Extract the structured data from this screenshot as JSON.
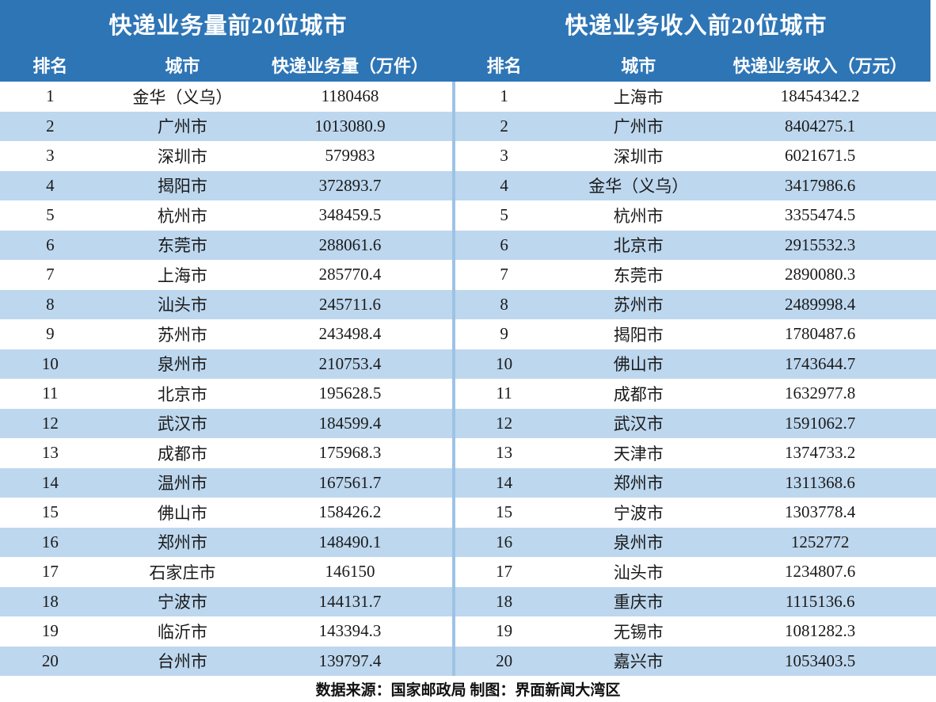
{
  "tables": [
    {
      "id": "volume",
      "title": "快递业务量前20位城市",
      "columns": [
        "排名",
        "城市",
        "快递业务量（万件）"
      ],
      "rows": [
        {
          "rank": "1",
          "city": "金华（义乌）",
          "value": "1180468"
        },
        {
          "rank": "2",
          "city": "广州市",
          "value": "1013080.9"
        },
        {
          "rank": "3",
          "city": "深圳市",
          "value": "579983"
        },
        {
          "rank": "4",
          "city": "揭阳市",
          "value": "372893.7"
        },
        {
          "rank": "5",
          "city": "杭州市",
          "value": "348459.5"
        },
        {
          "rank": "6",
          "city": "东莞市",
          "value": "288061.6"
        },
        {
          "rank": "7",
          "city": "上海市",
          "value": "285770.4"
        },
        {
          "rank": "8",
          "city": "汕头市",
          "value": "245711.6"
        },
        {
          "rank": "9",
          "city": "苏州市",
          "value": "243498.4"
        },
        {
          "rank": "10",
          "city": "泉州市",
          "value": "210753.4"
        },
        {
          "rank": "11",
          "city": "北京市",
          "value": "195628.5"
        },
        {
          "rank": "12",
          "city": "武汉市",
          "value": "184599.4"
        },
        {
          "rank": "13",
          "city": "成都市",
          "value": "175968.3"
        },
        {
          "rank": "14",
          "city": "温州市",
          "value": "167561.7"
        },
        {
          "rank": "15",
          "city": "佛山市",
          "value": "158426.2"
        },
        {
          "rank": "16",
          "city": "郑州市",
          "value": "148490.1"
        },
        {
          "rank": "17",
          "city": "石家庄市",
          "value": "146150"
        },
        {
          "rank": "18",
          "city": "宁波市",
          "value": "144131.7"
        },
        {
          "rank": "19",
          "city": "临沂市",
          "value": "143394.3"
        },
        {
          "rank": "20",
          "city": "台州市",
          "value": "139797.4"
        }
      ]
    },
    {
      "id": "revenue",
      "title": "快递业务收入前20位城市",
      "columns": [
        "排名",
        "城市",
        "快递业务收入（万元）"
      ],
      "rows": [
        {
          "rank": "1",
          "city": "上海市",
          "value": "18454342.2"
        },
        {
          "rank": "2",
          "city": "广州市",
          "value": "8404275.1"
        },
        {
          "rank": "3",
          "city": "深圳市",
          "value": "6021671.5"
        },
        {
          "rank": "4",
          "city": "金华（义乌）",
          "value": "3417986.6"
        },
        {
          "rank": "5",
          "city": "杭州市",
          "value": "3355474.5"
        },
        {
          "rank": "6",
          "city": "北京市",
          "value": "2915532.3"
        },
        {
          "rank": "7",
          "city": "东莞市",
          "value": "2890080.3"
        },
        {
          "rank": "8",
          "city": "苏州市",
          "value": "2489998.4"
        },
        {
          "rank": "9",
          "city": "揭阳市",
          "value": "1780487.6"
        },
        {
          "rank": "10",
          "city": "佛山市",
          "value": "1743644.7"
        },
        {
          "rank": "11",
          "city": "成都市",
          "value": "1632977.8"
        },
        {
          "rank": "12",
          "city": "武汉市",
          "value": "1591062.7"
        },
        {
          "rank": "13",
          "city": "天津市",
          "value": "1374733.2"
        },
        {
          "rank": "14",
          "city": "郑州市",
          "value": "1311368.6"
        },
        {
          "rank": "15",
          "city": "宁波市",
          "value": "1303778.4"
        },
        {
          "rank": "16",
          "city": "泉州市",
          "value": "1252772"
        },
        {
          "rank": "17",
          "city": "汕头市",
          "value": "1234807.6"
        },
        {
          "rank": "18",
          "city": "重庆市",
          "value": "1115136.6"
        },
        {
          "rank": "19",
          "city": "无锡市",
          "value": "1081282.3"
        },
        {
          "rank": "20",
          "city": "嘉兴市",
          "value": "1053403.5"
        }
      ]
    }
  ],
  "footer": {
    "text": "数据来源：国家邮政局 制图：界面新闻大湾区"
  },
  "colors": {
    "header_bg": "#2E75B6",
    "stripe_bg": "#BDD7EE",
    "divider": "#9DC3E6",
    "header_text": "#ffffff",
    "body_text": "#1a1a1a"
  },
  "chart_data": [
    {
      "type": "table",
      "title": "快递业务量前20位城市",
      "columns": [
        "排名",
        "城市",
        "快递业务量（万件）"
      ],
      "rows": [
        [
          1,
          "金华（义乌）",
          1180468
        ],
        [
          2,
          "广州市",
          1013080.9
        ],
        [
          3,
          "深圳市",
          579983
        ],
        [
          4,
          "揭阳市",
          372893.7
        ],
        [
          5,
          "杭州市",
          348459.5
        ],
        [
          6,
          "东莞市",
          288061.6
        ],
        [
          7,
          "上海市",
          285770.4
        ],
        [
          8,
          "汕头市",
          245711.6
        ],
        [
          9,
          "苏州市",
          243498.4
        ],
        [
          10,
          "泉州市",
          210753.4
        ],
        [
          11,
          "北京市",
          195628.5
        ],
        [
          12,
          "武汉市",
          184599.4
        ],
        [
          13,
          "成都市",
          175968.3
        ],
        [
          14,
          "温州市",
          167561.7
        ],
        [
          15,
          "佛山市",
          158426.2
        ],
        [
          16,
          "郑州市",
          148490.1
        ],
        [
          17,
          "石家庄市",
          146150
        ],
        [
          18,
          "宁波市",
          144131.7
        ],
        [
          19,
          "临沂市",
          143394.3
        ],
        [
          20,
          "台州市",
          139797.4
        ]
      ]
    },
    {
      "type": "table",
      "title": "快递业务收入前20位城市",
      "columns": [
        "排名",
        "城市",
        "快递业务收入（万元）"
      ],
      "rows": [
        [
          1,
          "上海市",
          18454342.2
        ],
        [
          2,
          "广州市",
          8404275.1
        ],
        [
          3,
          "深圳市",
          6021671.5
        ],
        [
          4,
          "金华（义乌）",
          3417986.6
        ],
        [
          5,
          "杭州市",
          3355474.5
        ],
        [
          6,
          "北京市",
          2915532.3
        ],
        [
          7,
          "东莞市",
          2890080.3
        ],
        [
          8,
          "苏州市",
          2489998.4
        ],
        [
          9,
          "揭阳市",
          1780487.6
        ],
        [
          10,
          "佛山市",
          1743644.7
        ],
        [
          11,
          "成都市",
          1632977.8
        ],
        [
          12,
          "武汉市",
          1591062.7
        ],
        [
          13,
          "天津市",
          1374733.2
        ],
        [
          14,
          "郑州市",
          1311368.6
        ],
        [
          15,
          "宁波市",
          1303778.4
        ],
        [
          16,
          "泉州市",
          1252772
        ],
        [
          17,
          "汕头市",
          1234807.6
        ],
        [
          18,
          "重庆市",
          1115136.6
        ],
        [
          19,
          "无锡市",
          1081282.3
        ],
        [
          20,
          "嘉兴市",
          1053403.5
        ]
      ]
    }
  ]
}
